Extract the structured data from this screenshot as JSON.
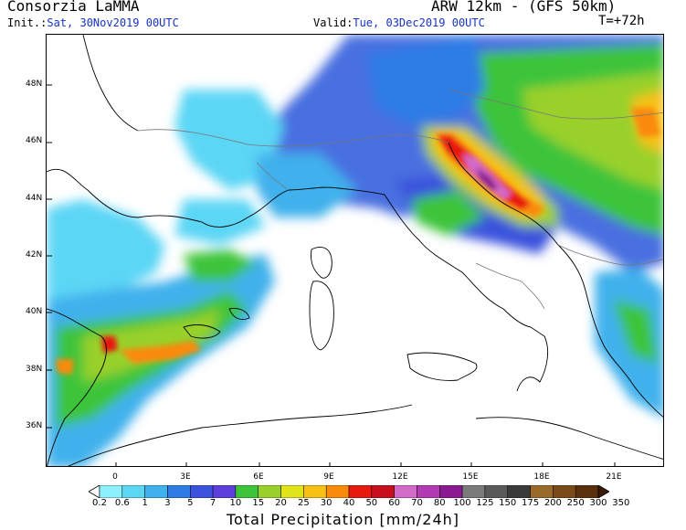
{
  "header": {
    "organization": "Consorzia LaMMA",
    "model": "ARW 12km - (GFS 50km)",
    "init_label": "Init.:",
    "init_value": "Sat, 30Nov2019 00UTC",
    "valid_label": "Valid:",
    "valid_value": "Tue, 03Dec2019 00UTC",
    "lead_time": "T=+72h"
  },
  "map": {
    "lat_labels": [
      "48N",
      "46N",
      "44N",
      "42N",
      "40N",
      "38N",
      "36N"
    ],
    "lon_labels": [
      "0",
      "3E",
      "6E",
      "9E",
      "12E",
      "15E",
      "18E",
      "21E"
    ]
  },
  "legend": {
    "title": "Total Precipitation [mm/24h]",
    "levels": [
      "0.2",
      "0.6",
      "1",
      "3",
      "5",
      "7",
      "10",
      "15",
      "20",
      "25",
      "30",
      "40",
      "50",
      "60",
      "70",
      "80",
      "100",
      "125",
      "150",
      "175",
      "200",
      "250",
      "300",
      "350"
    ],
    "colors": [
      "#ffffff",
      "#8cf0ff",
      "#5cd6f5",
      "#3fb1ec",
      "#2f7be6",
      "#3b52dd",
      "#5e3fdb",
      "#3ec43a",
      "#9ad02a",
      "#e2e41a",
      "#f8c012",
      "#fa8a0a",
      "#e8190e",
      "#c90e1e",
      "#d26ac8",
      "#b23ab2",
      "#8a1a92",
      "#7a7a7a",
      "#5a5a5a",
      "#3a3a3a",
      "#9a6a2a",
      "#7a4a18",
      "#5a300c",
      "#3a1a04"
    ]
  }
}
